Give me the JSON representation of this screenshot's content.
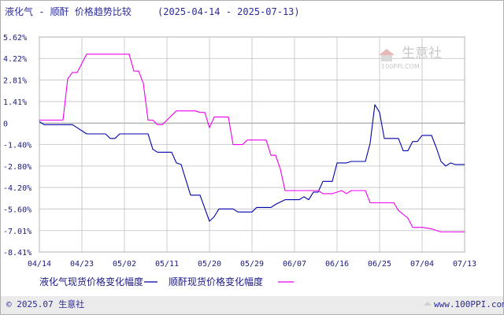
{
  "header": {
    "title": "液化气 - 顺酐 价格趋势比较",
    "date_range": "(2025-04-14 - 2025-07-13)"
  },
  "watermark": {
    "brand": "生意社",
    "site": "100PPI.COM"
  },
  "footer": {
    "copyright": "© 2025.07 生意社",
    "url": "www.100PPI.com"
  },
  "legend": [
    {
      "label": "液化气现货价格变化幅度",
      "color": "#0000aa"
    },
    {
      "label": "顺酐现货价格变化幅度",
      "color": "#ee00ee"
    }
  ],
  "colors": {
    "axis": "#1a1a80",
    "grid": "#c0c0c0",
    "zero_line": "#aaaaaa",
    "frame": "#b0b0b0"
  },
  "chart_data": {
    "type": "line",
    "title": "液化气 - 顺酐 价格趋势比较",
    "xlabel": "",
    "ylabel": "",
    "x_ticks": [
      "04/14",
      "04/23",
      "05/02",
      "05/11",
      "05/20",
      "05/29",
      "06/07",
      "06/16",
      "06/25",
      "07/04",
      "07/13"
    ],
    "y_ticks": [
      "5.62%",
      "4.22%",
      "2.81%",
      "1.41%",
      "0",
      "-1.40%",
      "-2.80%",
      "-4.20%",
      "-5.60%",
      "-7.01%",
      "-8.41%"
    ],
    "y_tick_values": [
      5.62,
      4.22,
      2.81,
      1.41,
      0,
      -1.4,
      -2.8,
      -4.2,
      -5.6,
      -7.01,
      -8.41
    ],
    "ylim": [
      -8.41,
      5.62
    ],
    "x_start": "2025-04-14",
    "x_end": "2025-07-13",
    "grid": true,
    "legend_position": "bottom",
    "series": [
      {
        "name": "液化气现货价格变化幅度",
        "color": "#0000aa",
        "points": [
          [
            "2025-04-14",
            0.1
          ],
          [
            "2025-04-15",
            -0.1
          ],
          [
            "2025-04-21",
            -0.1
          ],
          [
            "2025-04-22",
            -0.3
          ],
          [
            "2025-04-24",
            -0.7
          ],
          [
            "2025-04-28",
            -0.7
          ],
          [
            "2025-04-29",
            -1.0
          ],
          [
            "2025-04-30",
            -1.0
          ],
          [
            "2025-05-01",
            -0.7
          ],
          [
            "2025-05-07",
            -0.7
          ],
          [
            "2025-05-08",
            -1.7
          ],
          [
            "2025-05-09",
            -1.9
          ],
          [
            "2025-05-12",
            -1.9
          ],
          [
            "2025-05-13",
            -2.6
          ],
          [
            "2025-05-14",
            -2.7
          ],
          [
            "2025-05-15",
            -3.7
          ],
          [
            "2025-05-16",
            -4.7
          ],
          [
            "2025-05-18",
            -4.7
          ],
          [
            "2025-05-20",
            -6.4
          ],
          [
            "2025-05-21",
            -6.1
          ],
          [
            "2025-05-22",
            -5.6
          ],
          [
            "2025-05-25",
            -5.6
          ],
          [
            "2025-05-26",
            -5.8
          ],
          [
            "2025-05-29",
            -5.8
          ],
          [
            "2025-05-30",
            -5.5
          ],
          [
            "2025-06-02",
            -5.5
          ],
          [
            "2025-06-03",
            -5.3
          ],
          [
            "2025-06-05",
            -5.0
          ],
          [
            "2025-06-07",
            -5.0
          ],
          [
            "2025-06-08",
            -5.0
          ],
          [
            "2025-06-09",
            -4.8
          ],
          [
            "2025-06-10",
            -5.0
          ],
          [
            "2025-06-11",
            -4.5
          ],
          [
            "2025-06-12",
            -4.5
          ],
          [
            "2025-06-13",
            -3.8
          ],
          [
            "2025-06-15",
            -3.8
          ],
          [
            "2025-06-16",
            -2.6
          ],
          [
            "2025-06-18",
            -2.6
          ],
          [
            "2025-06-19",
            -2.5
          ],
          [
            "2025-06-22",
            -2.5
          ],
          [
            "2025-06-23",
            -1.3
          ],
          [
            "2025-06-24",
            1.2
          ],
          [
            "2025-06-25",
            0.7
          ],
          [
            "2025-06-26",
            -1.0
          ],
          [
            "2025-06-29",
            -1.0
          ],
          [
            "2025-06-30",
            -1.8
          ],
          [
            "2025-07-01",
            -1.8
          ],
          [
            "2025-07-02",
            -1.2
          ],
          [
            "2025-07-03",
            -1.2
          ],
          [
            "2025-07-04",
            -0.8
          ],
          [
            "2025-07-06",
            -0.8
          ],
          [
            "2025-07-07",
            -1.6
          ],
          [
            "2025-07-08",
            -2.5
          ],
          [
            "2025-07-09",
            -2.8
          ],
          [
            "2025-07-10",
            -2.6
          ],
          [
            "2025-07-11",
            -2.7
          ],
          [
            "2025-07-13",
            -2.7
          ]
        ]
      },
      {
        "name": "顺酐现货价格变化幅度",
        "color": "#ee00ee",
        "points": [
          [
            "2025-04-14",
            0.2
          ],
          [
            "2025-04-19",
            0.2
          ],
          [
            "2025-04-20",
            2.9
          ],
          [
            "2025-04-21",
            3.3
          ],
          [
            "2025-04-22",
            3.3
          ],
          [
            "2025-04-23",
            3.9
          ],
          [
            "2025-04-24",
            4.5
          ],
          [
            "2025-04-26",
            4.5
          ],
          [
            "2025-05-01",
            4.5
          ],
          [
            "2025-05-03",
            4.5
          ],
          [
            "2025-05-04",
            3.4
          ],
          [
            "2025-05-05",
            3.4
          ],
          [
            "2025-05-06",
            2.6
          ],
          [
            "2025-05-07",
            0.2
          ],
          [
            "2025-05-08",
            0.2
          ],
          [
            "2025-05-09",
            -0.1
          ],
          [
            "2025-05-10",
            -0.1
          ],
          [
            "2025-05-11",
            0.2
          ],
          [
            "2025-05-13",
            0.8
          ],
          [
            "2025-05-17",
            0.8
          ],
          [
            "2025-05-18",
            0.7
          ],
          [
            "2025-05-19",
            0.7
          ],
          [
            "2025-05-20",
            -0.3
          ],
          [
            "2025-05-21",
            0.4
          ],
          [
            "2025-05-24",
            0.4
          ],
          [
            "2025-05-25",
            -1.4
          ],
          [
            "2025-05-27",
            -1.4
          ],
          [
            "2025-05-28",
            -1.1
          ],
          [
            "2025-06-01",
            -1.1
          ],
          [
            "2025-06-02",
            -2.1
          ],
          [
            "2025-06-03",
            -2.1
          ],
          [
            "2025-06-04",
            -3.0
          ],
          [
            "2025-06-05",
            -4.4
          ],
          [
            "2025-06-07",
            -4.4
          ],
          [
            "2025-06-12",
            -4.4
          ],
          [
            "2025-06-13",
            -4.6
          ],
          [
            "2025-06-15",
            -4.6
          ],
          [
            "2025-06-17",
            -4.4
          ],
          [
            "2025-06-18",
            -4.6
          ],
          [
            "2025-06-19",
            -4.4
          ],
          [
            "2025-06-22",
            -4.4
          ],
          [
            "2025-06-23",
            -5.2
          ],
          [
            "2025-06-25",
            -5.2
          ],
          [
            "2025-06-28",
            -5.2
          ],
          [
            "2025-06-29",
            -5.7
          ],
          [
            "2025-07-01",
            -6.2
          ],
          [
            "2025-07-02",
            -6.8
          ],
          [
            "2025-07-04",
            -6.8
          ],
          [
            "2025-07-06",
            -6.9
          ],
          [
            "2025-07-07",
            -7.0
          ],
          [
            "2025-07-08",
            -7.1
          ],
          [
            "2025-07-13",
            -7.1
          ]
        ]
      }
    ]
  }
}
